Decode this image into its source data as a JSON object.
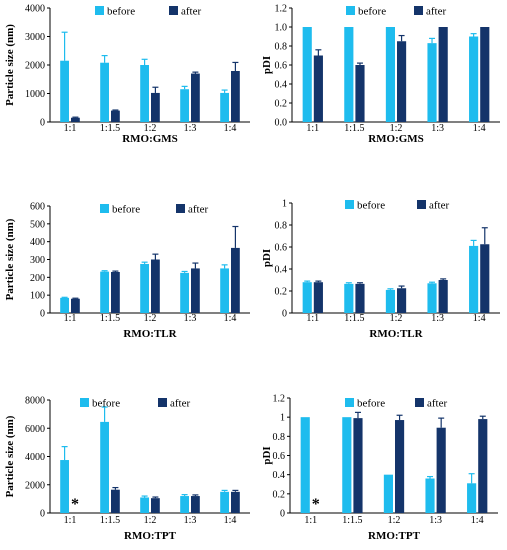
{
  "colors": {
    "before": "#1EBCEE",
    "after": "#14346A"
  },
  "chart_data": [
    {
      "type": "bar",
      "categories": [
        "1:1",
        "1:1.5",
        "1:2",
        "1:3",
        "1:4"
      ],
      "series": [
        {
          "name": "before",
          "values": [
            2150,
            2080,
            2000,
            1150,
            1020
          ],
          "errors": [
            1000,
            250,
            200,
            100,
            100
          ]
        },
        {
          "name": "after",
          "values": [
            150,
            400,
            1020,
            1700,
            1790
          ],
          "errors": [
            20,
            20,
            200,
            50,
            300
          ]
        }
      ],
      "xlabel": "RMO:GMS",
      "ylabel": "Particle size (nm)",
      "ylim": [
        0,
        4000
      ],
      "yticks": [
        "0",
        "1000",
        "2000",
        "3000",
        "4000"
      ],
      "annotations": [],
      "grid": false,
      "legend": "top-right"
    },
    {
      "type": "bar",
      "categories": [
        "1:1",
        "1:1.5",
        "1:2",
        "1:3",
        "1:4"
      ],
      "series": [
        {
          "name": "before",
          "values": [
            1.0,
            1.0,
            1.0,
            0.83,
            0.9
          ],
          "errors": [
            0,
            0,
            0,
            0.05,
            0.03
          ]
        },
        {
          "name": "after",
          "values": [
            0.7,
            0.6,
            0.85,
            1.0,
            1.0
          ],
          "errors": [
            0.06,
            0.02,
            0.06,
            0,
            0
          ]
        }
      ],
      "xlabel": "RMO:GMS",
      "ylabel": "pDI",
      "ylim": [
        0,
        1.2
      ],
      "yticks": [
        "0.0",
        "0.2",
        "0.4",
        "0.6",
        "0.8",
        "1.0",
        "1.2"
      ],
      "annotations": [],
      "grid": false,
      "legend": "top-right"
    },
    {
      "type": "bar",
      "categories": [
        "1:1",
        "1:1.5",
        "1:2",
        "1:3",
        "1:4"
      ],
      "series": [
        {
          "name": "before",
          "values": [
            85,
            232,
            275,
            225,
            250
          ],
          "errors": [
            3,
            5,
            10,
            8,
            20
          ]
        },
        {
          "name": "after",
          "values": [
            80,
            230,
            300,
            250,
            365
          ],
          "errors": [
            3,
            5,
            30,
            30,
            120
          ]
        }
      ],
      "xlabel": "RMO:TLR",
      "ylabel": "Particle size (nm)",
      "ylim": [
        0,
        600
      ],
      "yticks": [
        "0",
        "100",
        "200",
        "300",
        "400",
        "500",
        "600"
      ],
      "annotations": [],
      "grid": false,
      "legend": "top-right"
    },
    {
      "type": "bar",
      "categories": [
        "1:1",
        "1:1.5",
        "1:2",
        "1:3",
        "1:4"
      ],
      "series": [
        {
          "name": "before",
          "values": [
            0.28,
            0.265,
            0.21,
            0.27,
            0.61
          ],
          "errors": [
            0.01,
            0.01,
            0.01,
            0.01,
            0.05
          ]
        },
        {
          "name": "after",
          "values": [
            0.28,
            0.265,
            0.225,
            0.3,
            0.625
          ],
          "errors": [
            0.01,
            0.01,
            0.02,
            0.01,
            0.15
          ]
        }
      ],
      "xlabel": "RMO:TLR",
      "ylabel": "pDI",
      "ylim": [
        0,
        1.0
      ],
      "yticks": [
        "0",
        "0.2",
        "0.4",
        "0.6",
        "0.8",
        "1"
      ],
      "annotations": [],
      "grid": false,
      "legend": "top-right"
    },
    {
      "type": "bar",
      "categories": [
        "1:1",
        "1:1.5",
        "1:2",
        "1:3",
        "1:4"
      ],
      "series": [
        {
          "name": "before",
          "values": [
            3750,
            6450,
            1100,
            1200,
            1500
          ],
          "errors": [
            950,
            1050,
            100,
            100,
            100
          ]
        },
        {
          "name": "after",
          "values": [
            null,
            1650,
            1050,
            1200,
            1500
          ],
          "errors": [
            null,
            150,
            80,
            80,
            100
          ]
        }
      ],
      "xlabel": "RMO:TPT",
      "ylabel": "Particle size (nm)",
      "ylim": [
        0,
        8000
      ],
      "yticks": [
        "0",
        "2000",
        "4000",
        "6000",
        "8000"
      ],
      "annotations": [
        {
          "text": "*",
          "category": "1:1",
          "series": "after"
        }
      ],
      "grid": false,
      "legend": "top-right"
    },
    {
      "type": "bar",
      "categories": [
        "1:1",
        "1:1.5",
        "1:2",
        "1:3",
        "1:4"
      ],
      "series": [
        {
          "name": "before",
          "values": [
            1.0,
            1.0,
            0.4,
            0.36,
            0.31
          ],
          "errors": [
            0,
            0,
            0,
            0.02,
            0.1
          ]
        },
        {
          "name": "after",
          "values": [
            null,
            0.99,
            0.97,
            0.89,
            0.98
          ],
          "errors": [
            null,
            0.06,
            0.05,
            0.1,
            0.03
          ]
        }
      ],
      "xlabel": "RMO:TPT",
      "ylabel": "pDI",
      "ylim": [
        0,
        1.2
      ],
      "yticks": [
        "0",
        "0.2",
        "0.4",
        "0.6",
        "0.8",
        "1",
        "1.2"
      ],
      "annotations": [
        {
          "text": "*",
          "category": "1:1",
          "series": "after"
        }
      ],
      "grid": false,
      "legend": "top-right"
    }
  ]
}
